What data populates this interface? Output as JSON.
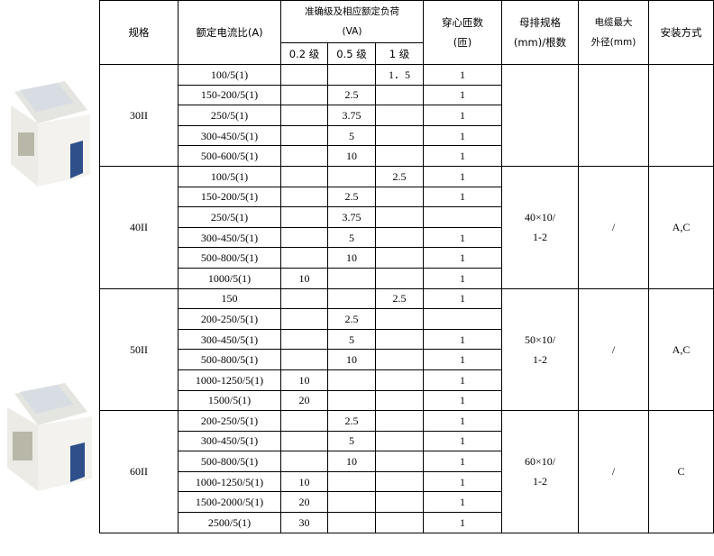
{
  "header": {
    "spec": "规格",
    "ratio": "额定电流比(A)",
    "accuracy_title": "准确级及相应额定负荷",
    "accuracy_unit": "(VA)",
    "class_02": "0.2 级",
    "class_05": "0.5 级",
    "class_1": "1 级",
    "turns_line1": "穿心匝数",
    "turns_line2": "(匝)",
    "busbar_line1": "母排规格",
    "busbar_line2": "(mm)/根数",
    "cable_line1": "电缆最大",
    "cable_line2": "外径(mm)",
    "install": "安装方式"
  },
  "groups": [
    {
      "spec": "30II",
      "busbar": [
        "",
        ""
      ],
      "cable": "",
      "install": "",
      "rows": [
        [
          "100/5(1)",
          "",
          "",
          "1．5",
          "1"
        ],
        [
          "150-200/5(1)",
          "",
          "2.5",
          "",
          "1"
        ],
        [
          "250/5(1)",
          "",
          "3.75",
          "",
          "1"
        ],
        [
          "300-450/5(1)",
          "",
          "5",
          "",
          "1"
        ],
        [
          "500-600/5(1)",
          "",
          "10",
          "",
          "1"
        ]
      ]
    },
    {
      "spec": "40II",
      "busbar": [
        "40×10/",
        "1-2"
      ],
      "cable": "/",
      "install": "A,C",
      "rows": [
        [
          "100/5(1)",
          "",
          "",
          "2.5",
          "1"
        ],
        [
          "150-200/5(1)",
          "",
          "2.5",
          "",
          "1"
        ],
        [
          "250/5(1)",
          "",
          "3.75",
          "",
          ""
        ],
        [
          "300-450/5(1)",
          "",
          "5",
          "",
          "1"
        ],
        [
          "500-800/5(1)",
          "",
          "10",
          "",
          "1"
        ],
        [
          "1000/5(1)",
          "10",
          "",
          "",
          "1"
        ]
      ]
    },
    {
      "spec": "50II",
      "busbar": [
        "50×10/",
        "1-2"
      ],
      "cable": "/",
      "install": "A,C",
      "rows": [
        [
          "150",
          "",
          "",
          "2.5",
          "1"
        ],
        [
          "200-250/5(1)",
          "",
          "2.5",
          "",
          ""
        ],
        [
          "300-450/5(1)",
          "",
          "5",
          "",
          "1"
        ],
        [
          "500-800/5(1)",
          "",
          "10",
          "",
          "1"
        ],
        [
          "1000-1250/5(1)",
          "10",
          "",
          "",
          "1"
        ],
        [
          "1500/5(1)",
          "20",
          "",
          "",
          "1"
        ]
      ]
    },
    {
      "spec": "60II",
      "busbar": [
        "60×10/",
        "1-2"
      ],
      "cable": "/",
      "install": "C",
      "rows": [
        [
          "200-250/5(1)",
          "",
          "2.5",
          "",
          "1"
        ],
        [
          "300-450/5(1)",
          "",
          "5",
          "",
          "1"
        ],
        [
          "500-800/5(1)",
          "",
          "10",
          "",
          "1"
        ],
        [
          "1000-1250/5(1)",
          "10",
          "",
          "",
          "1"
        ],
        [
          "1500-2000/5(1)",
          "20",
          "",
          "",
          "1"
        ],
        [
          "2500/5(1)",
          "30",
          "",
          "",
          "1"
        ]
      ]
    }
  ]
}
